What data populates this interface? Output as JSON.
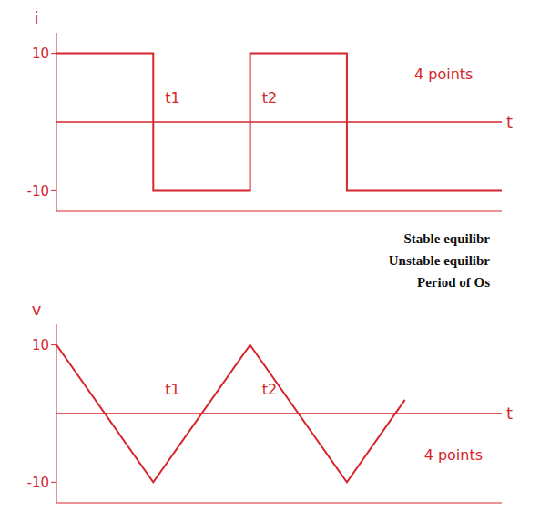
{
  "chart_data": [
    {
      "type": "line",
      "line_style": "step",
      "x_label": "t",
      "y_label": "i",
      "x": [
        0,
        1,
        2,
        3,
        4.6
      ],
      "values": [
        10,
        -10,
        10,
        -10,
        -10
      ],
      "color": "#d4262c",
      "xlim": [
        0,
        4.6
      ],
      "ylim": [
        -13,
        13
      ],
      "yticks": [
        -10,
        10
      ],
      "tick_labels": "y",
      "grid": false,
      "annotations": [
        {
          "text": "t1",
          "x": 1.2,
          "y": 3.5
        },
        {
          "text": "t2",
          "x": 2.2,
          "y": 3.5
        },
        {
          "text": "4 points",
          "x": 4.0,
          "y": 7
        }
      ]
    },
    {
      "type": "line",
      "line_style": "solid",
      "x_label": "t",
      "y_label": "v",
      "x": [
        0,
        1,
        2,
        3,
        3.6
      ],
      "values": [
        10,
        -10,
        10,
        -10,
        2
      ],
      "color": "#d4262c",
      "xlim": [
        0,
        4.6
      ],
      "ylim": [
        -13,
        13
      ],
      "yticks": [
        -10,
        10
      ],
      "tick_labels": "y",
      "grid": false,
      "annotations": [
        {
          "text": "t1",
          "x": 1.2,
          "y": 3.5
        },
        {
          "text": "t2",
          "x": 2.2,
          "y": 3.5
        },
        {
          "text": "4 points",
          "x": 4.1,
          "y": -6
        }
      ]
    }
  ],
  "side_text": [
    "Stable equilibr",
    "Unstable equilibr",
    "Period of Os"
  ]
}
